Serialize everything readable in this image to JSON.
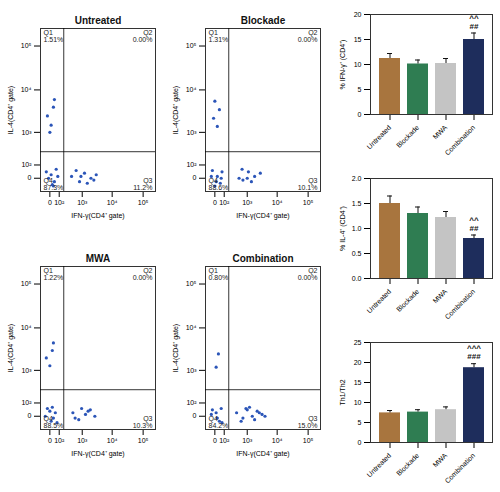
{
  "chart_data": [
    {
      "type": "scatter",
      "title": "Untreated",
      "x_label": "IFN-γ(CD4⁺ gate)",
      "y_label": "IL-4(CD4⁺ gate)",
      "log": true,
      "color": "#2b55b8",
      "xlim": [
        -100,
        250000
      ],
      "ylim": [
        -100,
        250000
      ],
      "xticks": [
        0,
        {
          "value": 100,
          "label": "10²"
        },
        {
          "value": 1000,
          "label": "10³"
        },
        {
          "value": 10000,
          "label": "10⁴"
        },
        {
          "value": 100000,
          "label": "10⁵"
        }
      ],
      "yticks": [
        0,
        {
          "value": 100,
          "label": "10²"
        },
        {
          "value": 1000,
          "label": "10³"
        },
        {
          "value": 10000,
          "label": "10⁴"
        },
        {
          "value": 100000,
          "label": "10⁵"
        }
      ],
      "quadrant_lines": {
        "x": 180,
        "y": 300
      },
      "quadrant_names": [
        "Q1",
        "Q2",
        "Q3",
        "Q4"
      ],
      "quadrant_values": [
        1.51,
        0.0,
        11.2,
        87.3
      ],
      "quadrant_value_labels": [
        "1.51%",
        "0.00%",
        "11.2%",
        "87.3%"
      ],
      "x": [
        10,
        40,
        -30,
        60,
        20,
        -10,
        80,
        30,
        400,
        800,
        1200,
        2000,
        600,
        1500,
        3000,
        900,
        2500,
        10,
        -20,
        30,
        0,
        40
      ],
      "y": [
        20,
        -20,
        40,
        60,
        -40,
        0,
        10,
        -50,
        10,
        -20,
        30,
        0,
        50,
        -30,
        20,
        10,
        -10,
        1500,
        2500,
        4000,
        1000,
        6000
      ]
    },
    {
      "type": "scatter",
      "title": "Blockade",
      "x_label": "IFN-γ(CD4⁺ gate)",
      "y_label": "IL-4(CD4⁺ gate)",
      "log": true,
      "color": "#2b55b8",
      "xlim": [
        -100,
        250000
      ],
      "ylim": [
        -100,
        250000
      ],
      "xticks": [
        0,
        {
          "value": 100,
          "label": "10²"
        },
        {
          "value": 1000,
          "label": "10³"
        },
        {
          "value": 10000,
          "label": "10⁴"
        },
        {
          "value": 100000,
          "label": "10⁵"
        }
      ],
      "yticks": [
        0,
        {
          "value": 100,
          "label": "10²"
        },
        {
          "value": 1000,
          "label": "10³"
        },
        {
          "value": 10000,
          "label": "10⁴"
        },
        {
          "value": 100000,
          "label": "10⁵"
        }
      ],
      "quadrant_lines": {
        "x": 180,
        "y": 300
      },
      "quadrant_names": [
        "Q1",
        "Q2",
        "Q3",
        "Q4"
      ],
      "quadrant_values": [
        1.31,
        0.0,
        10.1,
        88.6
      ],
      "quadrant_value_labels": [
        "1.31%",
        "0.00%",
        "10.1%",
        "88.6%"
      ],
      "x": [
        20,
        50,
        -20,
        70,
        10,
        -30,
        60,
        0,
        500,
        700,
        1100,
        1800,
        650,
        1400,
        2800,
        1000,
        20,
        -10,
        40,
        0
      ],
      "y": [
        10,
        -30,
        50,
        40,
        -20,
        10,
        0,
        -50,
        0,
        -10,
        40,
        10,
        60,
        -20,
        30,
        0,
        1400,
        2200,
        3500,
        5500
      ]
    },
    {
      "type": "scatter",
      "title": "MWA",
      "x_label": "IFN-γ(CD4⁺ gate)",
      "y_label": "IL-4(CD4⁺ gate)",
      "log": true,
      "color": "#2b55b8",
      "xlim": [
        -100,
        250000
      ],
      "ylim": [
        -100,
        250000
      ],
      "xticks": [
        0,
        {
          "value": 100,
          "label": "10²"
        },
        {
          "value": 1000,
          "label": "10³"
        },
        {
          "value": 10000,
          "label": "10⁴"
        },
        {
          "value": 100000,
          "label": "10⁵"
        }
      ],
      "yticks": [
        0,
        {
          "value": 100,
          "label": "10²"
        },
        {
          "value": 1000,
          "label": "10³"
        },
        {
          "value": 10000,
          "label": "10⁴"
        },
        {
          "value": 100000,
          "label": "10⁵"
        }
      ],
      "quadrant_lines": {
        "x": 180,
        "y": 300
      },
      "quadrant_names": [
        "Q1",
        "Q2",
        "Q3",
        "Q4"
      ],
      "quadrant_values": [
        1.22,
        0.0,
        10.3,
        88.5
      ],
      "quadrant_value_labels": [
        "1.22%",
        "0.00%",
        "10.3%",
        "88.5%"
      ],
      "x": [
        0,
        30,
        -20,
        50,
        70,
        -40,
        20,
        10,
        450,
        750,
        1300,
        1900,
        550,
        1600,
        2700,
        950,
        0,
        -30,
        20,
        30
      ],
      "y": [
        30,
        -10,
        50,
        20,
        -40,
        0,
        60,
        -30,
        20,
        -20,
        10,
        40,
        -10,
        30,
        0,
        50,
        1300,
        2000,
        3000,
        4500
      ]
    },
    {
      "type": "scatter",
      "title": "Combination",
      "x_label": "IFN-γ(CD4⁺ gate)",
      "y_label": "IL-4(CD4⁺ gate)",
      "log": true,
      "color": "#2b55b8",
      "xlim": [
        -100,
        250000
      ],
      "ylim": [
        -100,
        250000
      ],
      "xticks": [
        0,
        {
          "value": 100,
          "label": "10²"
        },
        {
          "value": 1000,
          "label": "10³"
        },
        {
          "value": 10000,
          "label": "10⁴"
        },
        {
          "value": 100000,
          "label": "10⁵"
        }
      ],
      "yticks": [
        0,
        {
          "value": 100,
          "label": "10²"
        },
        {
          "value": 1000,
          "label": "10³"
        },
        {
          "value": 10000,
          "label": "10⁴"
        },
        {
          "value": 100000,
          "label": "10⁵"
        }
      ],
      "quadrant_lines": {
        "x": 180,
        "y": 300
      },
      "quadrant_names": [
        "Q1",
        "Q2",
        "Q3",
        "Q4"
      ],
      "quadrant_values": [
        0.8,
        0.0,
        15.0,
        84.2
      ],
      "quadrant_value_labels": [
        "0.80%",
        "0.00%",
        "15.0%",
        "84.2%"
      ],
      "x": [
        10,
        40,
        -20,
        60,
        20,
        -30,
        70,
        400,
        700,
        1000,
        1500,
        2200,
        3200,
        600,
        1200,
        1800,
        2600,
        900,
        4000,
        10,
        30
      ],
      "y": [
        20,
        -30,
        40,
        50,
        -10,
        10,
        -40,
        20,
        -10,
        40,
        0,
        30,
        10,
        -30,
        60,
        -20,
        20,
        50,
        0,
        1200,
        2500
      ]
    },
    {
      "type": "bar",
      "y_label": "% IFN-γ⁺ (CD4⁺)",
      "categories": [
        "Untreated",
        "Blockade",
        "MWA",
        "Combination"
      ],
      "values": [
        11.2,
        10.1,
        10.2,
        15.0
      ],
      "errors": [
        1.0,
        0.8,
        1.0,
        1.3
      ],
      "colors": [
        "#a8753e",
        "#2f7d52",
        "#c4c4c4",
        "#1e2d5c"
      ],
      "ylim": [
        0,
        20
      ],
      "yticks": [
        0,
        5,
        10,
        15,
        20
      ],
      "annotations": [
        {
          "category": "Combination",
          "lines": [
            "^^",
            "##"
          ]
        }
      ]
    },
    {
      "type": "bar",
      "y_label": "% IL-4⁺ (CD4⁺)",
      "categories": [
        "Untreated",
        "Blockade",
        "MWA",
        "Combination"
      ],
      "values": [
        1.5,
        1.3,
        1.22,
        0.8
      ],
      "errors": [
        0.15,
        0.13,
        0.12,
        0.07
      ],
      "colors": [
        "#a8753e",
        "#2f7d52",
        "#c4c4c4",
        "#1e2d5c"
      ],
      "ylim": [
        0,
        2
      ],
      "yticks": [
        {
          "value": 0,
          "label": "0.0"
        },
        {
          "value": 0.5,
          "label": "0.5"
        },
        {
          "value": 1,
          "label": "1.0"
        },
        {
          "value": 1.5,
          "label": "1.5"
        },
        {
          "value": 2,
          "label": "2.0"
        }
      ],
      "annotations": [
        {
          "category": "Combination",
          "lines": [
            "^^",
            "##"
          ]
        }
      ]
    },
    {
      "type": "bar",
      "y_label": "Th1/Th2",
      "categories": [
        "Untreated",
        "Blockade",
        "MWA",
        "Combination"
      ],
      "values": [
        7.4,
        7.6,
        8.2,
        18.7
      ],
      "errors": [
        0.6,
        0.6,
        0.7,
        1.0
      ],
      "colors": [
        "#a8753e",
        "#2f7d52",
        "#c4c4c4",
        "#1e2d5c"
      ],
      "ylim": [
        0,
        25
      ],
      "yticks": [
        0,
        5,
        10,
        15,
        20,
        25
      ],
      "annotations": [
        {
          "category": "Combination",
          "lines": [
            "^^^",
            "###"
          ]
        }
      ]
    }
  ]
}
